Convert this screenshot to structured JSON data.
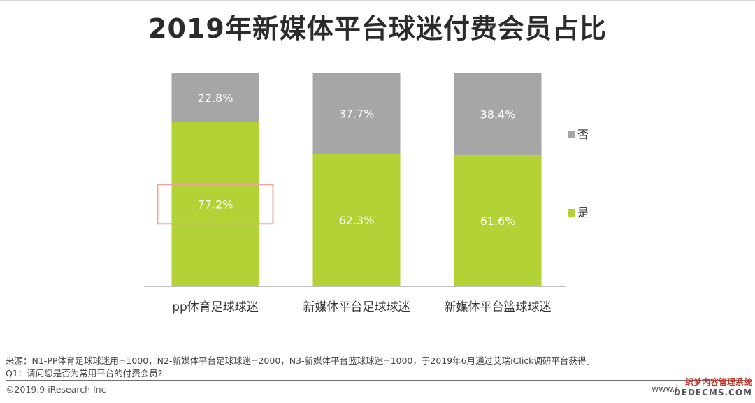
{
  "title": "2019年新媒体平台球迷付费会员占比",
  "chart_data": {
    "type": "bar",
    "stacked": true,
    "categories": [
      "pp体育足球球迷",
      "新媒体平台足球球迷",
      "新媒体平台篮球球迷"
    ],
    "series": [
      {
        "name": "是",
        "values": [
          77.2,
          62.3,
          61.6
        ],
        "color": "#b2d235"
      },
      {
        "name": "否",
        "values": [
          22.8,
          37.7,
          38.4
        ],
        "color": "#a6a6a6"
      }
    ],
    "value_labels": {
      "是": [
        "77.2%",
        "62.3%",
        "61.6%"
      ],
      "否": [
        "22.8%",
        "37.7%",
        "38.4%"
      ]
    },
    "unit": "%",
    "ylim": [
      0,
      100
    ],
    "legend_position": "right",
    "highlighted": {
      "series": "是",
      "category": "pp体育足球球迷"
    },
    "highlight_color": "#f0a3a3"
  },
  "footer": {
    "source": "来源：N1-PP体育足球球迷用=1000，N2-新媒体平台足球球迷=2000，N3-新媒体平台篮球球迷=1000，于2019年6月通过艾瑞iClick调研平台获得。",
    "question": "Q1：请问您是否为常用平台的付费会员?",
    "copyright": "©2019.9 iResearch Inc",
    "site": "www.i"
  },
  "watermark": {
    "line1": "织梦内容管理系统",
    "line2": "DEDECMS.COM"
  }
}
